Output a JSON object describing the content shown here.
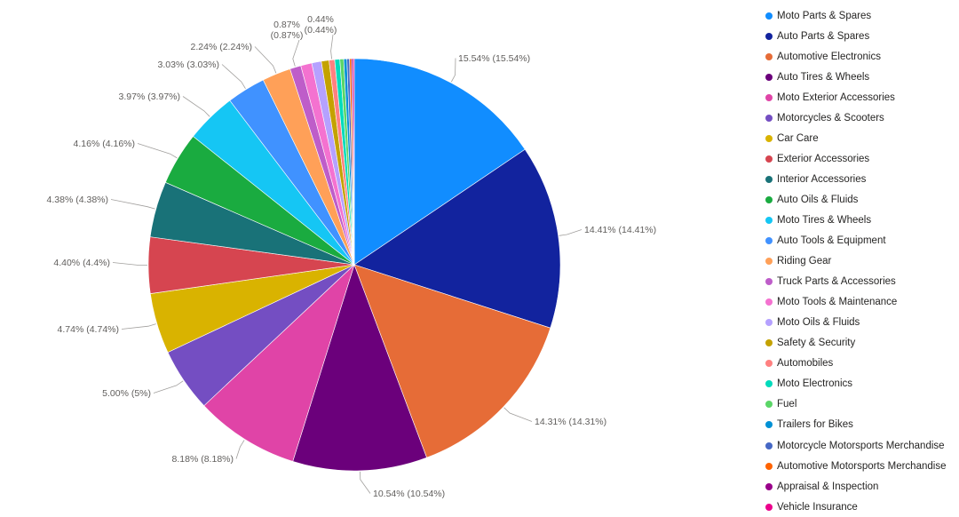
{
  "chart_data": {
    "type": "pie",
    "title": "",
    "start_angle_deg": 0,
    "direction": "clockwise",
    "legend_position": "right",
    "slices": [
      {
        "name": "Moto Parts & Spares",
        "value": 15.54,
        "label": "15.54% (15.54%)",
        "color": "#118DFF"
      },
      {
        "name": "Auto Parts & Spares",
        "value": 14.41,
        "label": "14.41% (14.41%)",
        "color": "#12239E"
      },
      {
        "name": "Automotive Electronics",
        "value": 14.31,
        "label": "14.31% (14.31%)",
        "color": "#E66C37"
      },
      {
        "name": "Auto Tires & Wheels",
        "value": 10.54,
        "label": "10.54% (10.54%)",
        "color": "#6B007B"
      },
      {
        "name": "Moto Exterior Accessories",
        "value": 8.18,
        "label": "8.18% (8.18%)",
        "color": "#E044A7"
      },
      {
        "name": "Motorcycles & Scooters",
        "value": 5.0,
        "label": "5.00% (5%)",
        "color": "#744EC2"
      },
      {
        "name": "Car Care",
        "value": 4.74,
        "label": "4.74% (4.74%)",
        "color": "#D9B300"
      },
      {
        "name": "Exterior Accessories",
        "value": 4.4,
        "label": "4.40% (4.4%)",
        "color": "#D64550"
      },
      {
        "name": "Interior Accessories",
        "value": 4.38,
        "label": "4.38% (4.38%)",
        "color": "#197278"
      },
      {
        "name": "Auto Oils & Fluids",
        "value": 4.16,
        "label": "4.16% (4.16%)",
        "color": "#1AAB40"
      },
      {
        "name": "Moto Tires & Wheels",
        "value": 3.97,
        "label": "3.97% (3.97%)",
        "color": "#15C6F4"
      },
      {
        "name": "Auto Tools & Equipment",
        "value": 3.03,
        "label": "3.03% (3.03%)",
        "color": "#4092FF"
      },
      {
        "name": "Riding Gear",
        "value": 2.24,
        "label": "2.24% (2.24%)",
        "color": "#FFA058"
      },
      {
        "name": "Truck Parts & Accessories",
        "value": 0.87,
        "label": "0.87% (0.87%)",
        "color": "#BE5DC9"
      },
      {
        "name": "Moto Tools & Maintenance",
        "value": 0.87,
        "label": "",
        "color": "#F472D0"
      },
      {
        "name": "Moto Oils & Fluids",
        "value": 0.75,
        "label": "",
        "color": "#B5A1FF"
      },
      {
        "name": "Safety & Security",
        "value": 0.6,
        "label": "",
        "color": "#C4A200"
      },
      {
        "name": "Automobiles",
        "value": 0.44,
        "label": "0.44% (0.44%)",
        "color": "#FF8080"
      },
      {
        "name": "Moto Electronics",
        "value": 0.4,
        "label": "",
        "color": "#00DBBC"
      },
      {
        "name": "Fuel",
        "value": 0.3,
        "label": "",
        "color": "#5BD667"
      },
      {
        "name": "Trailers for Bikes",
        "value": 0.25,
        "label": "",
        "color": "#0091D5"
      },
      {
        "name": "Motorcycle Motorsports Merchandise",
        "value": 0.2,
        "label": "",
        "color": "#4668C5"
      },
      {
        "name": "Automotive Motorsports Merchandise",
        "value": 0.15,
        "label": "",
        "color": "#FF6300"
      },
      {
        "name": "Appraisal & Inspection",
        "value": 0.12,
        "label": "",
        "color": "#99008A"
      },
      {
        "name": "Vehicle Insurance",
        "value": 0.1,
        "label": "",
        "color": "#EC008C"
      }
    ]
  }
}
